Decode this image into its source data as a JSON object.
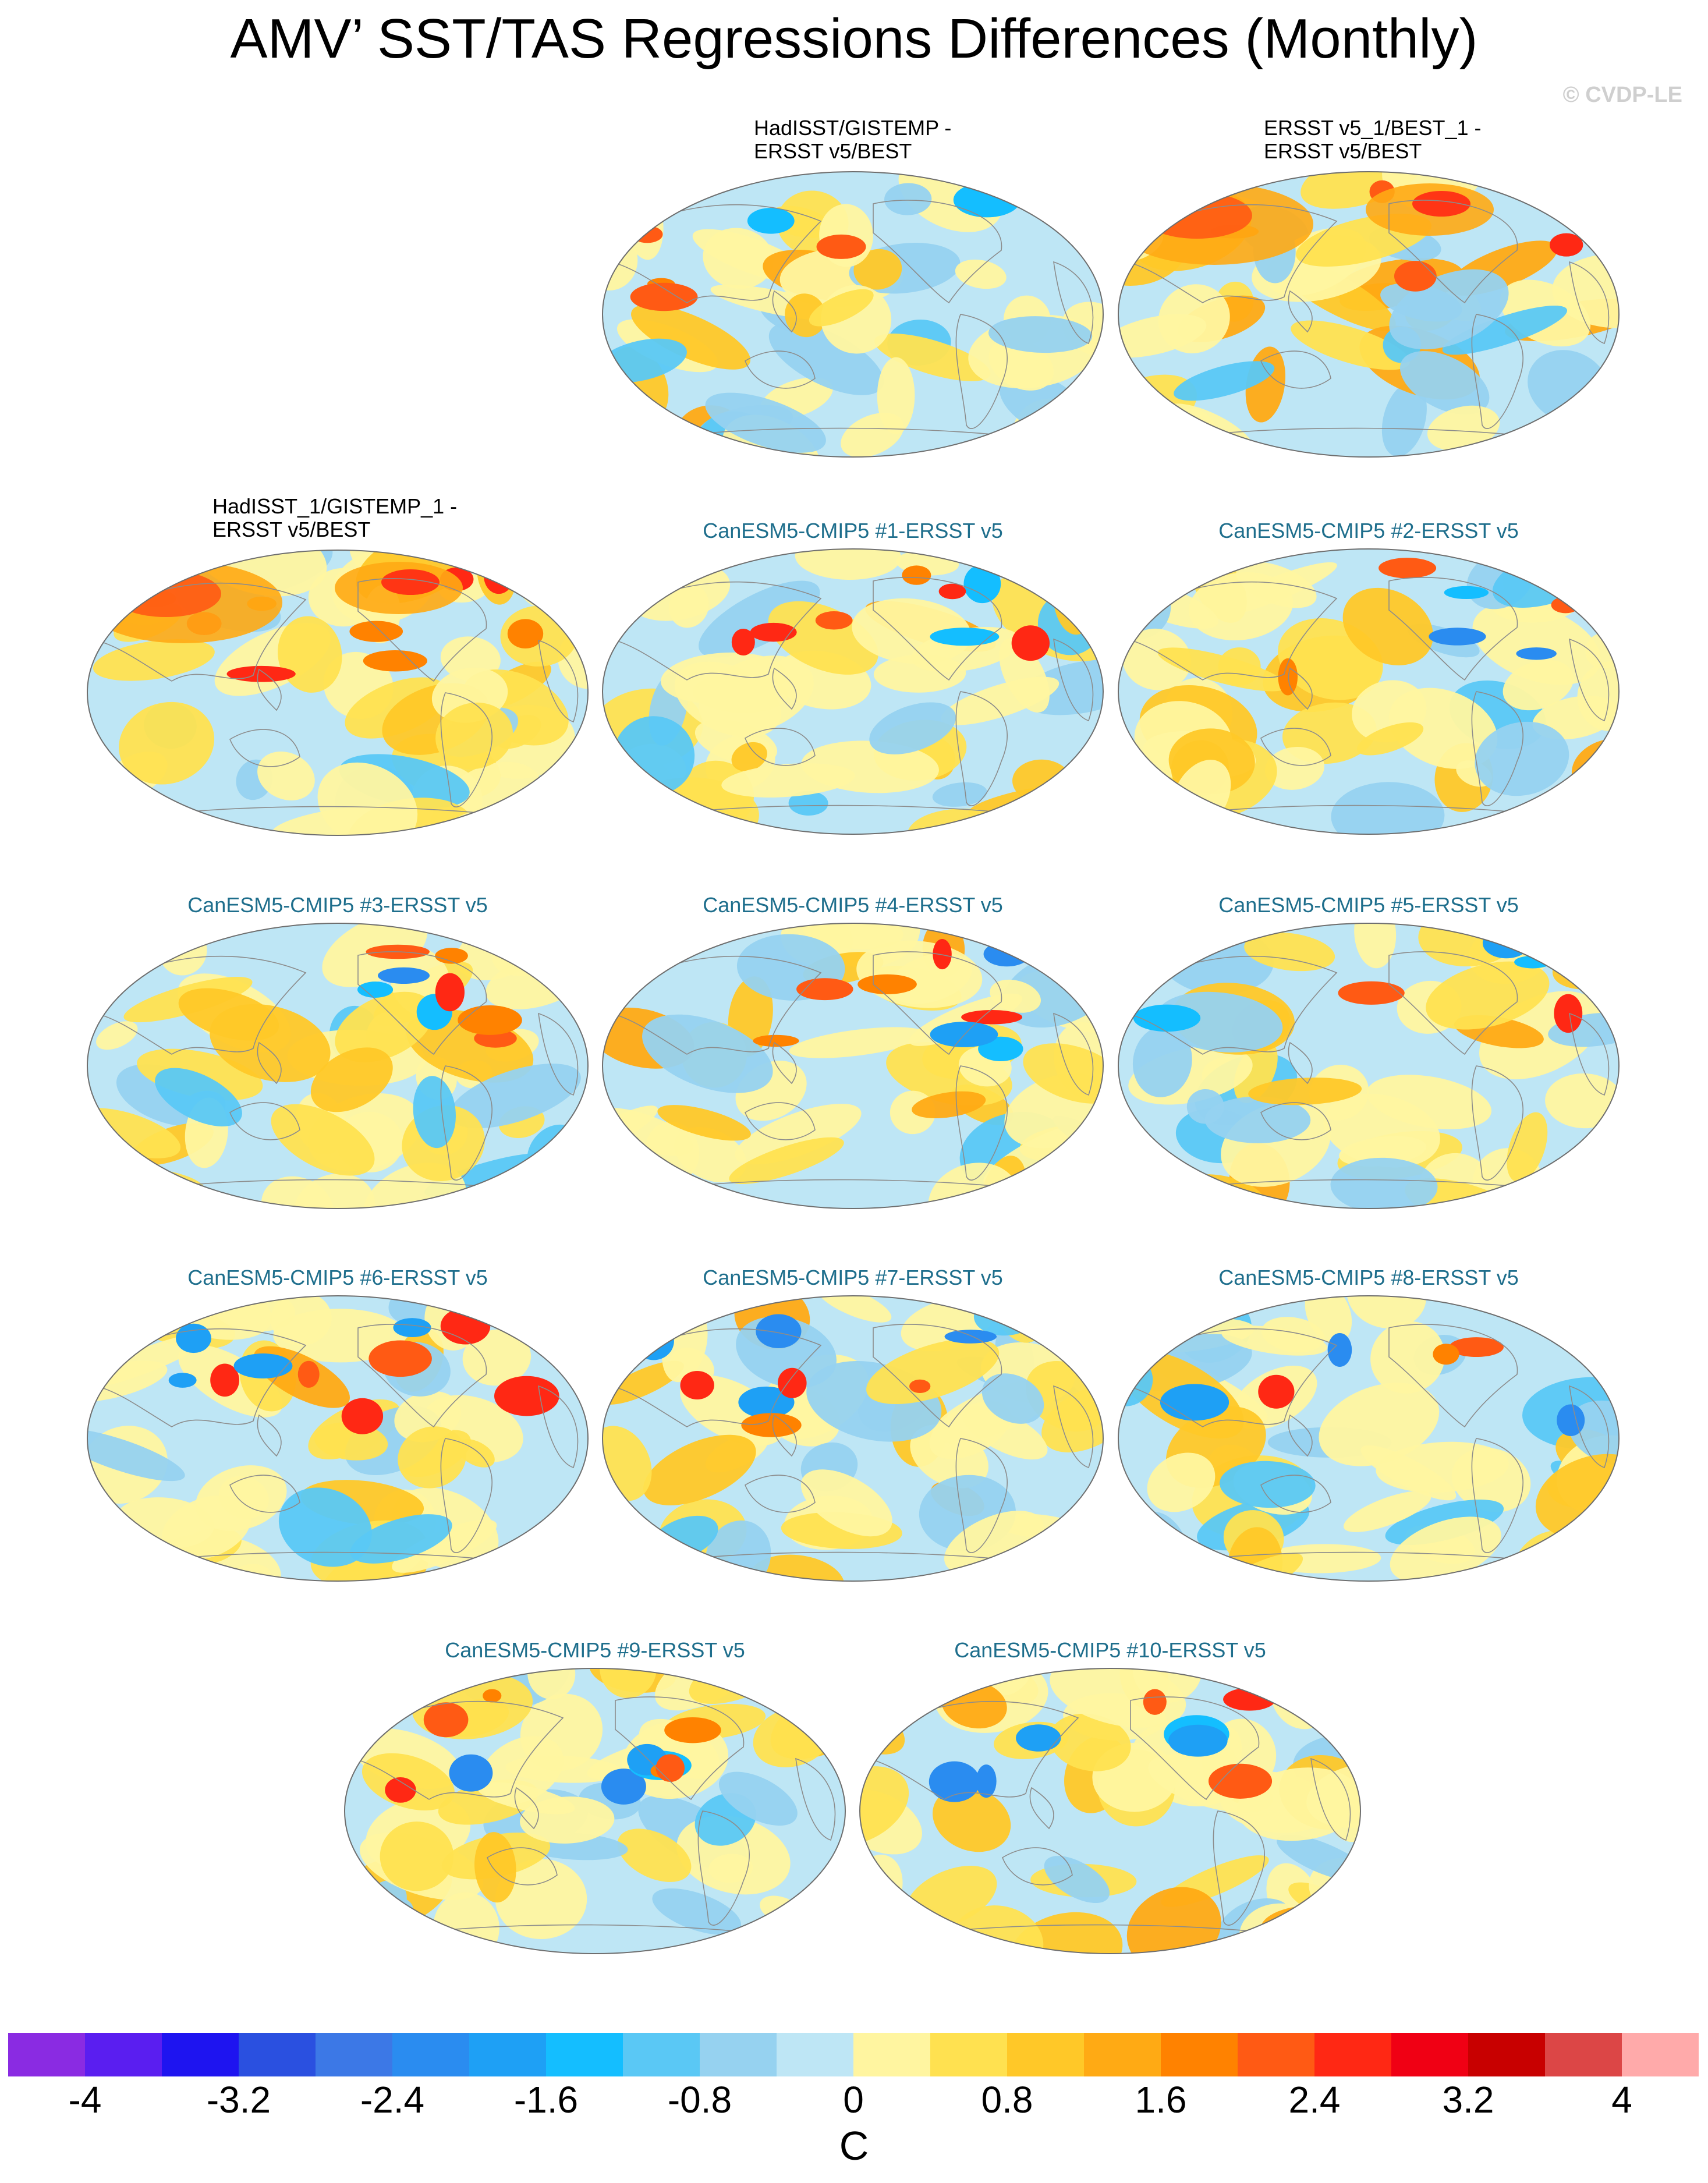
{
  "title": "AMV’ SST/TAS Regressions Differences (Monthly)",
  "credit": "© CVDP-LE",
  "panels": [
    {
      "title_lines": [
        "HadISST/GISTEMP -",
        "ERSST v5/BEST"
      ],
      "kind": "obs",
      "pattern": "neutral"
    },
    {
      "title_lines": [
        "ERSST v5_1/BEST_1 -",
        "ERSST v5/BEST"
      ],
      "kind": "obs",
      "pattern": "warm-asia"
    },
    {
      "title_lines": [
        "HadISST_1/GISTEMP_1 -",
        "ERSST v5/BEST"
      ],
      "kind": "obs",
      "pattern": "warm-asia"
    },
    {
      "title_lines": [
        "CanESM5-CMIP5 #1-ERSST v5"
      ],
      "kind": "model",
      "pattern": "mixed-1"
    },
    {
      "title_lines": [
        "CanESM5-CMIP5 #2-ERSST v5"
      ],
      "kind": "model",
      "pattern": "mixed-2"
    },
    {
      "title_lines": [
        "CanESM5-CMIP5 #3-ERSST v5"
      ],
      "kind": "model",
      "pattern": "mixed-3"
    },
    {
      "title_lines": [
        "CanESM5-CMIP5 #4-ERSST v5"
      ],
      "kind": "model",
      "pattern": "mixed-4"
    },
    {
      "title_lines": [
        "CanESM5-CMIP5 #5-ERSST v5"
      ],
      "kind": "model",
      "pattern": "mixed-5"
    },
    {
      "title_lines": [
        "CanESM5-CMIP5 #6-ERSST v5"
      ],
      "kind": "model",
      "pattern": "mixed-6"
    },
    {
      "title_lines": [
        "CanESM5-CMIP5 #7-ERSST v5"
      ],
      "kind": "model",
      "pattern": "mixed-7"
    },
    {
      "title_lines": [
        "CanESM5-CMIP5 #8-ERSST v5"
      ],
      "kind": "model",
      "pattern": "mixed-8"
    },
    {
      "title_lines": [
        "CanESM5-CMIP5 #9-ERSST v5"
      ],
      "kind": "model",
      "pattern": "mixed-9"
    },
    {
      "title_lines": [
        "CanESM5-CMIP5 #10-ERSST v5"
      ],
      "kind": "model",
      "pattern": "mixed-10"
    }
  ],
  "colorbar": {
    "colors": [
      "#8a2be2",
      "#5a1ef0",
      "#1e14f0",
      "#2a50e0",
      "#3c78e6",
      "#2a8cf0",
      "#1ea0f5",
      "#14beff",
      "#5ac8f5",
      "#96d2f0",
      "#bee6f5",
      "#fff5a0",
      "#ffe150",
      "#ffc828",
      "#ffaa14",
      "#ff8200",
      "#ff5a14",
      "#ff2814",
      "#f00014",
      "#c80000",
      "#dc4646",
      "#ffaaaa"
    ],
    "labels": [
      "-4",
      "-3.2",
      "-2.4",
      "-1.6",
      "-0.8",
      "0",
      "0.8",
      "1.6",
      "2.4",
      "3.2",
      "4"
    ],
    "unit": "C"
  }
}
